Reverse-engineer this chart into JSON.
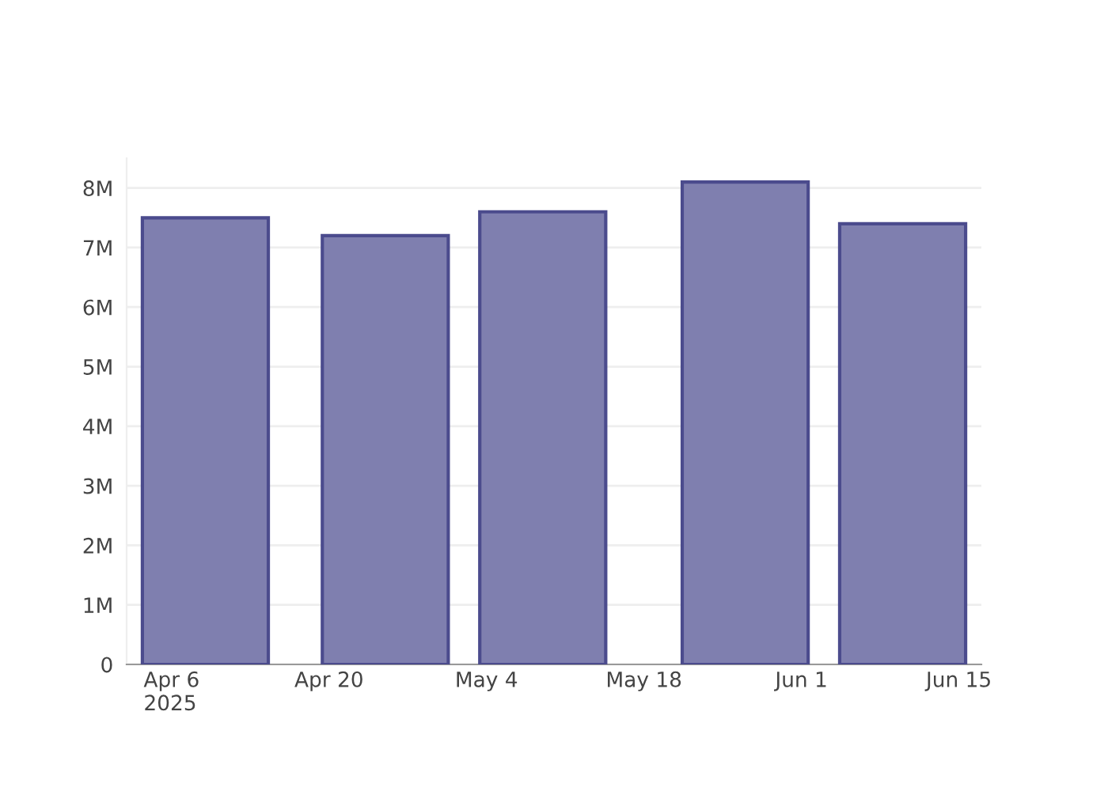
{
  "chart_data": {
    "type": "bar",
    "x": [
      "2025-04-09",
      "2025-04-25",
      "2025-05-09",
      "2025-05-27",
      "2025-06-10"
    ],
    "values": [
      7500000,
      7200000,
      7600000,
      8100000,
      7400000
    ],
    "color": "#7f7faf",
    "xlim": [
      "2025-04-02",
      "2025-06-17"
    ],
    "xticks": [
      {
        "value": "2025-04-06",
        "label": "Apr 6\n2025"
      },
      {
        "value": "2025-04-20",
        "label": "Apr 20"
      },
      {
        "value": "2025-05-04",
        "label": "May 4"
      },
      {
        "value": "2025-05-18",
        "label": "May 18"
      },
      {
        "value": "2025-06-01",
        "label": "Jun 1"
      },
      {
        "value": "2025-06-15",
        "label": "Jun 15"
      }
    ],
    "ylim": [
      0,
      8500000
    ],
    "yticks": [
      0,
      {
        "value": 1000000,
        "label": "1M"
      },
      {
        "value": 2000000,
        "label": "2M"
      },
      {
        "value": 3000000,
        "label": "3M"
      },
      {
        "value": 4000000,
        "label": "4M"
      },
      {
        "value": 5000000,
        "label": "5M"
      },
      {
        "value": 6000000,
        "label": "6M"
      },
      {
        "value": 7000000,
        "label": "7M"
      },
      {
        "value": 8000000,
        "label": "8M"
      }
    ],
    "grid": "y"
  }
}
